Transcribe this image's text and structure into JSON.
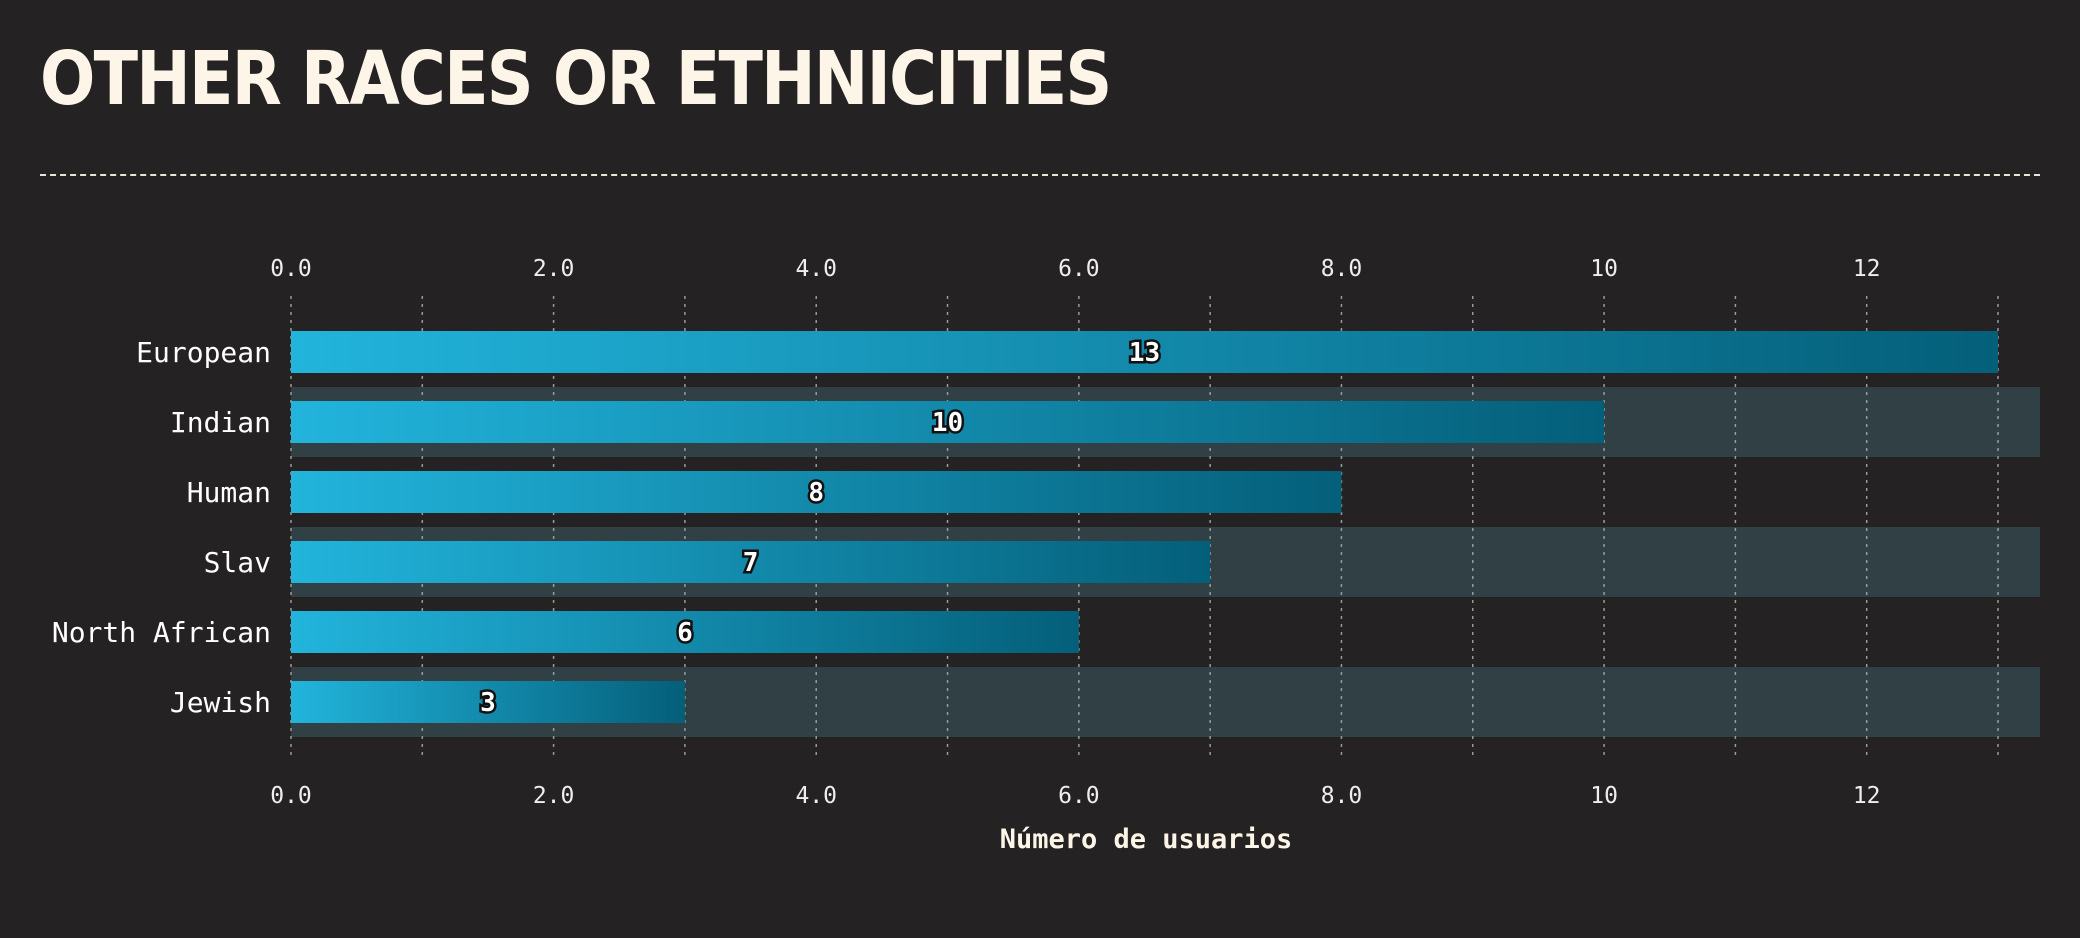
{
  "header": {
    "title": "OTHER RACES OR ETHNICITIES"
  },
  "colors": {
    "background": "#252223",
    "band": "#304044",
    "bar_start": "#22b4dc",
    "bar_end": "#045f7a",
    "text": "#fdf6e8"
  },
  "chart_data": {
    "type": "bar",
    "orientation": "horizontal",
    "categories": [
      "European",
      "Indian",
      "Human",
      "Slav",
      "North African",
      "Jewish"
    ],
    "values": [
      13,
      10,
      8,
      7,
      6,
      3
    ],
    "data_labels": [
      "13",
      "10",
      "8",
      "7",
      "6",
      "3"
    ],
    "xlabel": "Número de usuarios",
    "xlim": [
      0,
      13.3
    ],
    "x_ticks": [
      0,
      2,
      4,
      6,
      8,
      10,
      12
    ],
    "x_tick_labels": [
      "0.0",
      "2.0",
      "4.0",
      "6.0",
      "8.0",
      "10",
      "12"
    ],
    "x_minor_grid": [
      1,
      3,
      5,
      7,
      9,
      11,
      13
    ],
    "grid": true,
    "tick_labels_top_and_bottom": true,
    "alternating_row_bands": true
  }
}
